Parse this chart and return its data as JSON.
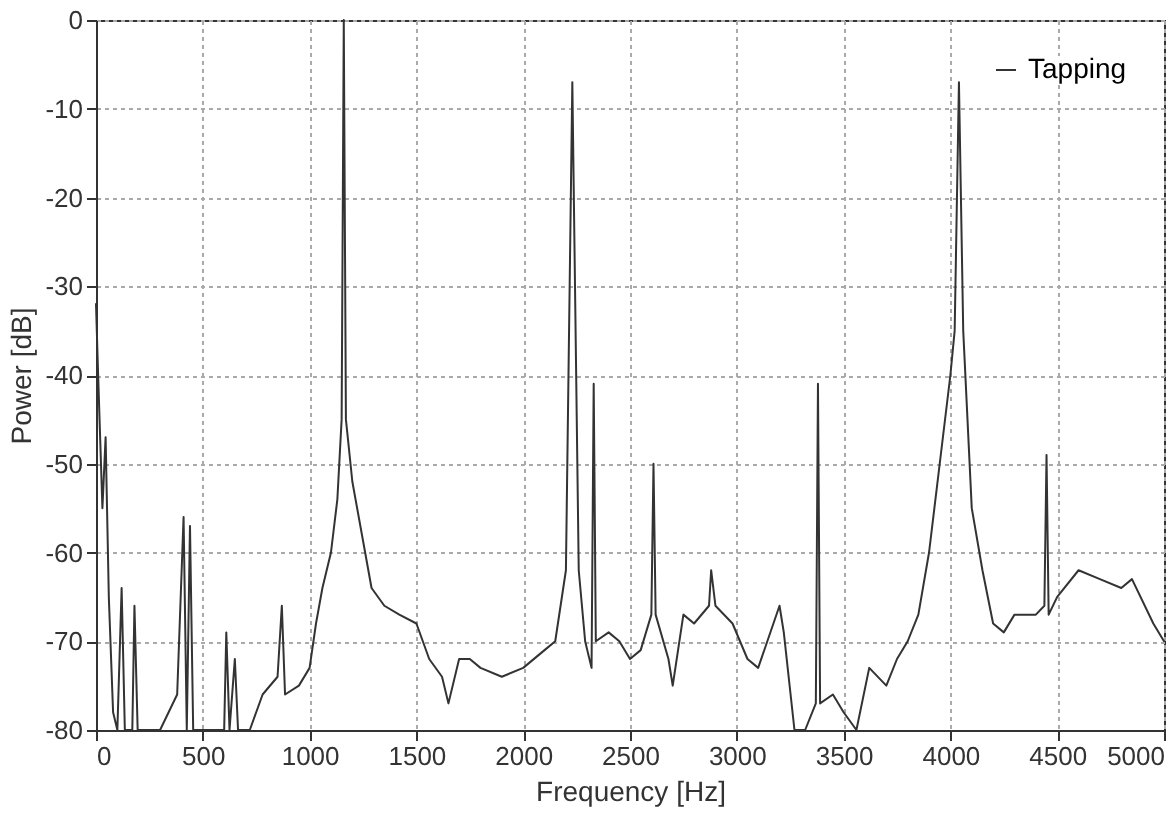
{
  "chart_data": {
    "type": "line",
    "xlabel": "Frequency [Hz]",
    "ylabel": "Power [dB]",
    "xlim": [
      0,
      5000
    ],
    "ylim": [
      -80,
      0
    ],
    "xticks": [
      0,
      500,
      1000,
      1500,
      2000,
      2500,
      3000,
      3500,
      4000,
      4500,
      5000
    ],
    "yticks": [
      -80,
      -70,
      -60,
      -50,
      -40,
      -30,
      -20,
      -10,
      0
    ],
    "grid": true,
    "legend": "top right",
    "line_style": "solid",
    "series": [
      {
        "name": "Tapping",
        "color": "#333333",
        "x": [
          0,
          10,
          30,
          45,
          60,
          80,
          100,
          120,
          135,
          170,
          180,
          195,
          300,
          380,
          410,
          425,
          440,
          455,
          600,
          610,
          625,
          650,
          665,
          720,
          780,
          850,
          870,
          885,
          950,
          1000,
          1030,
          1060,
          1100,
          1130,
          1150,
          1160,
          1170,
          1200,
          1260,
          1290,
          1350,
          1420,
          1500,
          1560,
          1620,
          1650,
          1700,
          1750,
          1800,
          1900,
          2000,
          2100,
          2150,
          2200,
          2230,
          2260,
          2290,
          2320,
          2330,
          2340,
          2400,
          2450,
          2500,
          2550,
          2600,
          2610,
          2620,
          2680,
          2700,
          2750,
          2800,
          2870,
          2880,
          2900,
          2980,
          3050,
          3100,
          3200,
          3220,
          3270,
          3320,
          3370,
          3380,
          3390,
          3450,
          3500,
          3560,
          3620,
          3700,
          3750,
          3800,
          3850,
          3900,
          3950,
          4000,
          4020,
          4040,
          4060,
          4100,
          4150,
          4200,
          4250,
          4300,
          4400,
          4440,
          4450,
          4460,
          4500,
          4600,
          4700,
          4800,
          4850,
          4950,
          5000
        ],
        "values": [
          -32,
          -40,
          -55,
          -47,
          -65,
          -78,
          -80,
          -64,
          -80,
          -80,
          -66,
          -80,
          -80,
          -76,
          -56,
          -80,
          -57,
          -80,
          -80,
          -69,
          -80,
          -72,
          -80,
          -80,
          -76,
          -74,
          -66,
          -76,
          -75,
          -73,
          -68,
          -64,
          -60,
          -54,
          -45,
          0,
          -45,
          -52,
          -60,
          -64,
          -66,
          -67,
          -68,
          -72,
          -74,
          -77,
          -72,
          -72,
          -73,
          -74,
          -73,
          -71,
          -70,
          -62,
          -7,
          -62,
          -70,
          -73,
          -41,
          -70,
          -69,
          -70,
          -72,
          -71,
          -67,
          -50,
          -67,
          -72,
          -75,
          -67,
          -68,
          -66,
          -62,
          -66,
          -68,
          -72,
          -73,
          -66,
          -69,
          -80,
          -80,
          -77,
          -41,
          -77,
          -76,
          -78,
          -80,
          -73,
          -75,
          -72,
          -70,
          -67,
          -60,
          -50,
          -40,
          -35,
          -7,
          -35,
          -55,
          -62,
          -68,
          -69,
          -67,
          -67,
          -66,
          -49,
          -67,
          -65,
          -62,
          -63,
          -64,
          -63,
          -68,
          -70
        ]
      }
    ]
  }
}
